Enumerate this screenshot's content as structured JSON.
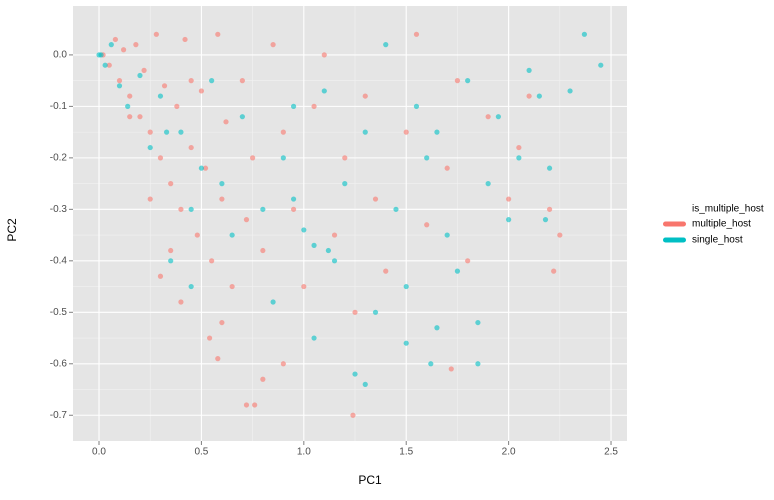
{
  "chart_data": {
    "type": "scatter",
    "x_label": "PC1",
    "y_label": "PC2",
    "legend_title": "is_multiple_host",
    "legend_position": "right",
    "xlim": [
      -0.127,
      2.578
    ],
    "ylim": [
      -0.75,
      0.095
    ],
    "xticks": [
      {
        "value": 0,
        "label": "0.0"
      },
      0.5,
      {
        "value": 1,
        "label": "1.0"
      },
      1.5,
      {
        "value": 2,
        "label": "2.0"
      },
      2.5
    ],
    "yticks": [
      {
        "value": 0,
        "label": "0.0"
      },
      -0.1,
      -0.2,
      -0.3,
      -0.4,
      -0.5,
      -0.6,
      -0.7
    ],
    "grid": true,
    "point_opacity": 0.6,
    "series": [
      {
        "name": "multiple_host",
        "color": "#F8766D",
        "x": [
          0.02,
          0.05,
          0.08,
          0.1,
          0.12,
          0.15,
          0.18,
          0.2,
          0.22,
          0.25,
          0.28,
          0.3,
          0.32,
          0.35,
          0.38,
          0.4,
          0.42,
          0.45,
          0.48,
          0.5,
          0.52,
          0.55,
          0.58,
          0.6,
          0.62,
          0.65,
          0.7,
          0.72,
          0.75,
          0.8,
          0.85,
          0.9,
          0.95,
          1.0,
          1.05,
          1.1,
          1.15,
          1.2,
          1.25,
          1.3,
          1.35,
          1.4,
          1.5,
          1.55,
          1.6,
          1.7,
          1.75,
          1.8,
          1.9,
          2.0,
          2.05,
          2.1,
          2.2,
          2.25,
          0.54,
          0.58,
          0.72,
          0.76,
          0.4,
          0.3,
          0.15,
          0.25,
          0.35,
          0.45,
          0.6,
          0.9,
          1.24,
          1.72,
          2.22,
          0.8
        ],
        "y": [
          0.0,
          -0.02,
          0.03,
          -0.05,
          0.01,
          -0.08,
          0.02,
          -0.12,
          -0.03,
          -0.15,
          0.04,
          -0.2,
          -0.06,
          -0.25,
          -0.1,
          -0.3,
          0.03,
          -0.18,
          -0.35,
          -0.07,
          -0.22,
          -0.4,
          0.04,
          -0.28,
          -0.13,
          -0.45,
          -0.05,
          -0.32,
          -0.2,
          -0.38,
          0.02,
          -0.15,
          -0.3,
          -0.45,
          -0.1,
          0.0,
          -0.35,
          -0.2,
          -0.5,
          -0.08,
          -0.28,
          -0.42,
          -0.15,
          0.04,
          -0.33,
          -0.22,
          -0.05,
          -0.4,
          -0.12,
          -0.28,
          -0.18,
          -0.08,
          -0.3,
          -0.35,
          -0.55,
          -0.59,
          -0.68,
          -0.68,
          -0.48,
          -0.43,
          -0.12,
          -0.28,
          -0.38,
          -0.05,
          -0.52,
          -0.6,
          -0.7,
          -0.61,
          -0.42,
          -0.63
        ]
      },
      {
        "name": "single_host",
        "color": "#00BFC4",
        "x": [
          0.0,
          0.01,
          0.03,
          0.06,
          0.1,
          0.14,
          0.2,
          0.25,
          0.3,
          0.35,
          0.4,
          0.45,
          0.5,
          0.55,
          0.6,
          0.65,
          0.7,
          0.8,
          0.85,
          0.9,
          0.95,
          1.0,
          1.05,
          1.1,
          1.15,
          1.2,
          1.25,
          1.3,
          1.35,
          1.4,
          1.45,
          1.5,
          1.55,
          1.6,
          1.65,
          1.7,
          1.75,
          1.8,
          1.85,
          1.9,
          1.95,
          2.0,
          2.05,
          2.1,
          2.15,
          2.2,
          2.3,
          2.37,
          2.45,
          1.5,
          1.62,
          1.3,
          1.12,
          1.65,
          0.95,
          0.33,
          0.45,
          1.85,
          2.18,
          1.05
        ],
        "y": [
          0.0,
          0.0,
          -0.02,
          0.02,
          -0.06,
          -0.1,
          -0.04,
          -0.18,
          -0.08,
          -0.4,
          -0.15,
          -0.3,
          -0.22,
          -0.05,
          -0.25,
          -0.35,
          -0.12,
          -0.3,
          -0.48,
          -0.2,
          -0.1,
          -0.34,
          -0.55,
          -0.07,
          -0.4,
          -0.25,
          -0.62,
          -0.15,
          -0.5,
          0.02,
          -0.3,
          -0.56,
          -0.1,
          -0.2,
          -0.53,
          -0.35,
          -0.42,
          -0.05,
          -0.6,
          -0.25,
          -0.12,
          -0.32,
          -0.2,
          -0.03,
          -0.08,
          -0.22,
          -0.07,
          0.04,
          -0.02,
          -0.45,
          -0.6,
          -0.64,
          -0.38,
          -0.15,
          -0.28,
          -0.15,
          -0.45,
          -0.52,
          -0.32,
          -0.37
        ]
      }
    ]
  }
}
